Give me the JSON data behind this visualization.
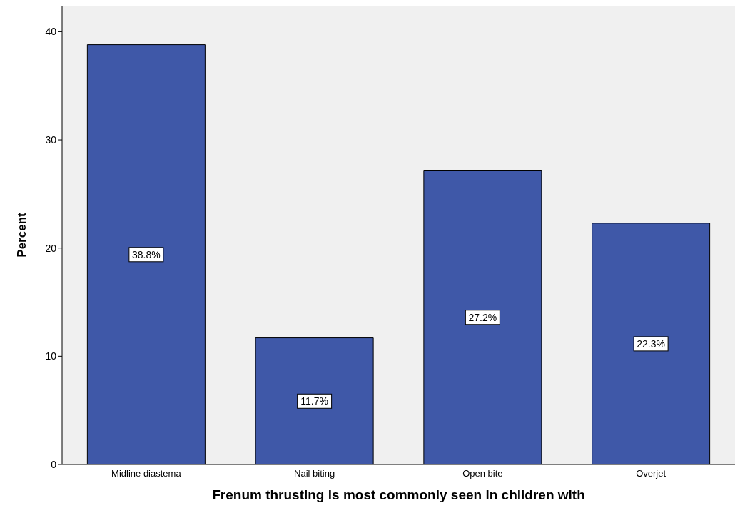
{
  "chart_data": {
    "type": "bar",
    "xlabel": "Frenum thrusting is most commonly seen in children with",
    "ylabel": "Percent",
    "categories": [
      "Midline diastema",
      "Nail biting",
      "Open bite",
      "Overjet"
    ],
    "values": [
      38.8,
      11.7,
      27.2,
      22.3
    ],
    "value_labels": [
      "38.8%",
      "11.7%",
      "27.2%",
      "22.3%"
    ],
    "color": "#3f58a8",
    "ylim": [
      0,
      42.4
    ],
    "yticks": [
      0,
      10,
      20,
      30,
      40
    ],
    "grid": false
  }
}
